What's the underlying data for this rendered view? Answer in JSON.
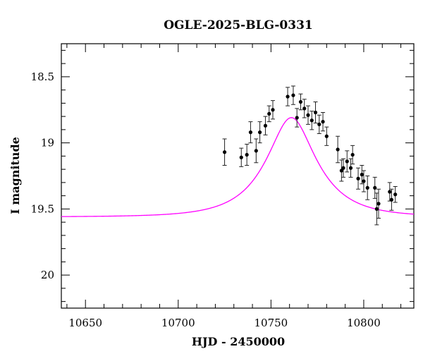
{
  "chart_data": {
    "type": "scatter",
    "title": "OGLE-2025-BLG-0331",
    "xlabel": "HJD - 2450000",
    "ylabel": "I magnitude",
    "xlim": [
      10637,
      10827
    ],
    "ylim": [
      20.25,
      18.25
    ],
    "y_inverted": true,
    "x_ticks": [
      10650,
      10700,
      10750,
      10800
    ],
    "x_tick_labels": [
      "10650",
      "10700",
      "10750",
      "10800"
    ],
    "y_ticks": [
      18.5,
      19,
      19.5,
      20
    ],
    "y_tick_labels": [
      "18.5",
      "19",
      "19.5",
      "20"
    ],
    "grid": false,
    "point_color": "#000000",
    "model_color": "#ff00ff",
    "model": {
      "type": "paczynski",
      "t0": 10761,
      "tE": 26,
      "u0": 0.44,
      "fs": 0.695,
      "baseline": 19.56
    },
    "points": [
      {
        "x": 10725,
        "y": 19.07,
        "err": 0.1
      },
      {
        "x": 10734,
        "y": 19.11,
        "err": 0.07
      },
      {
        "x": 10737,
        "y": 19.09,
        "err": 0.08
      },
      {
        "x": 10739,
        "y": 18.92,
        "err": 0.08
      },
      {
        "x": 10742,
        "y": 19.06,
        "err": 0.09
      },
      {
        "x": 10744,
        "y": 18.92,
        "err": 0.08
      },
      {
        "x": 10747,
        "y": 18.87,
        "err": 0.07
      },
      {
        "x": 10749,
        "y": 18.78,
        "err": 0.06
      },
      {
        "x": 10751,
        "y": 18.75,
        "err": 0.07
      },
      {
        "x": 10759,
        "y": 18.65,
        "err": 0.07
      },
      {
        "x": 10762,
        "y": 18.64,
        "err": 0.07
      },
      {
        "x": 10764,
        "y": 18.81,
        "err": 0.07
      },
      {
        "x": 10766,
        "y": 18.69,
        "err": 0.06
      },
      {
        "x": 10768,
        "y": 18.74,
        "err": 0.07
      },
      {
        "x": 10770,
        "y": 18.79,
        "err": 0.07
      },
      {
        "x": 10772,
        "y": 18.83,
        "err": 0.07
      },
      {
        "x": 10774,
        "y": 18.77,
        "err": 0.08
      },
      {
        "x": 10776,
        "y": 18.86,
        "err": 0.07
      },
      {
        "x": 10778,
        "y": 18.84,
        "err": 0.07
      },
      {
        "x": 10780,
        "y": 18.95,
        "err": 0.07
      },
      {
        "x": 10786,
        "y": 19.05,
        "err": 0.1
      },
      {
        "x": 10788,
        "y": 19.21,
        "err": 0.08
      },
      {
        "x": 10789,
        "y": 19.19,
        "err": 0.07
      },
      {
        "x": 10791,
        "y": 19.14,
        "err": 0.08
      },
      {
        "x": 10793,
        "y": 19.19,
        "err": 0.07
      },
      {
        "x": 10794,
        "y": 19.09,
        "err": 0.07
      },
      {
        "x": 10797,
        "y": 19.27,
        "err": 0.08
      },
      {
        "x": 10799,
        "y": 19.24,
        "err": 0.07
      },
      {
        "x": 10800,
        "y": 19.29,
        "err": 0.08
      },
      {
        "x": 10802,
        "y": 19.34,
        "err": 0.09
      },
      {
        "x": 10806,
        "y": 19.34,
        "err": 0.08
      },
      {
        "x": 10807,
        "y": 19.5,
        "err": 0.12
      },
      {
        "x": 10808,
        "y": 19.46,
        "err": 0.11
      },
      {
        "x": 10814,
        "y": 19.37,
        "err": 0.07
      },
      {
        "x": 10815,
        "y": 19.43,
        "err": 0.08
      },
      {
        "x": 10817,
        "y": 19.39,
        "err": 0.06
      }
    ]
  }
}
